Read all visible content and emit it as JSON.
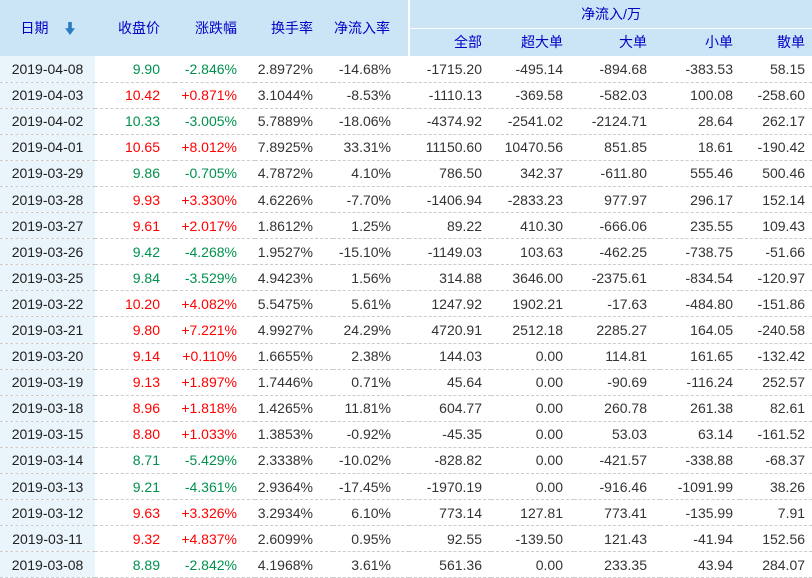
{
  "table": {
    "group_header": "净流入/万",
    "columns": [
      {
        "key": "date",
        "label": "日期"
      },
      {
        "key": "close",
        "label": "收盘价"
      },
      {
        "key": "change",
        "label": "涨跌幅"
      },
      {
        "key": "turnover",
        "label": "换手率"
      },
      {
        "key": "inflow_rate",
        "label": "净流入率"
      },
      {
        "key": "all",
        "label": "全部"
      },
      {
        "key": "super_large",
        "label": "超大单"
      },
      {
        "key": "large",
        "label": "大单"
      },
      {
        "key": "small",
        "label": "小单"
      },
      {
        "key": "retail",
        "label": "散单"
      }
    ],
    "sort": {
      "column": "date",
      "direction": "desc",
      "icon": "down-arrow"
    },
    "colors": {
      "up": "#ff0000",
      "down": "#00914e",
      "header_bg": "#cbe5f6",
      "header_text": "#0202c6",
      "date_column_bg": "#e9f4fb",
      "sort_arrow": "#2b7bc0"
    },
    "rows": [
      {
        "date": "2019-04-08",
        "close": "9.90",
        "change": "-2.846%",
        "turnover": "2.8972%",
        "inflow_rate": "-14.68%",
        "all": "-1715.20",
        "super_large": "-495.14",
        "large": "-894.68",
        "small": "-383.53",
        "retail": "58.15",
        "direction": "down"
      },
      {
        "date": "2019-04-03",
        "close": "10.42",
        "change": "+0.871%",
        "turnover": "3.1044%",
        "inflow_rate": "-8.53%",
        "all": "-1110.13",
        "super_large": "-369.58",
        "large": "-582.03",
        "small": "100.08",
        "retail": "-258.60",
        "direction": "up"
      },
      {
        "date": "2019-04-02",
        "close": "10.33",
        "change": "-3.005%",
        "turnover": "5.7889%",
        "inflow_rate": "-18.06%",
        "all": "-4374.92",
        "super_large": "-2541.02",
        "large": "-2124.71",
        "small": "28.64",
        "retail": "262.17",
        "direction": "down"
      },
      {
        "date": "2019-04-01",
        "close": "10.65",
        "change": "+8.012%",
        "turnover": "7.8925%",
        "inflow_rate": "33.31%",
        "all": "11150.60",
        "super_large": "10470.56",
        "large": "851.85",
        "small": "18.61",
        "retail": "-190.42",
        "direction": "up"
      },
      {
        "date": "2019-03-29",
        "close": "9.86",
        "change": "-0.705%",
        "turnover": "4.7872%",
        "inflow_rate": "4.10%",
        "all": "786.50",
        "super_large": "342.37",
        "large": "-611.80",
        "small": "555.46",
        "retail": "500.46",
        "direction": "down"
      },
      {
        "date": "2019-03-28",
        "close": "9.93",
        "change": "+3.330%",
        "turnover": "4.6226%",
        "inflow_rate": "-7.70%",
        "all": "-1406.94",
        "super_large": "-2833.23",
        "large": "977.97",
        "small": "296.17",
        "retail": "152.14",
        "direction": "up"
      },
      {
        "date": "2019-03-27",
        "close": "9.61",
        "change": "+2.017%",
        "turnover": "1.8612%",
        "inflow_rate": "1.25%",
        "all": "89.22",
        "super_large": "410.30",
        "large": "-666.06",
        "small": "235.55",
        "retail": "109.43",
        "direction": "up"
      },
      {
        "date": "2019-03-26",
        "close": "9.42",
        "change": "-4.268%",
        "turnover": "1.9527%",
        "inflow_rate": "-15.10%",
        "all": "-1149.03",
        "super_large": "103.63",
        "large": "-462.25",
        "small": "-738.75",
        "retail": "-51.66",
        "direction": "down"
      },
      {
        "date": "2019-03-25",
        "close": "9.84",
        "change": "-3.529%",
        "turnover": "4.9423%",
        "inflow_rate": "1.56%",
        "all": "314.88",
        "super_large": "3646.00",
        "large": "-2375.61",
        "small": "-834.54",
        "retail": "-120.97",
        "direction": "down"
      },
      {
        "date": "2019-03-22",
        "close": "10.20",
        "change": "+4.082%",
        "turnover": "5.5475%",
        "inflow_rate": "5.61%",
        "all": "1247.92",
        "super_large": "1902.21",
        "large": "-17.63",
        "small": "-484.80",
        "retail": "-151.86",
        "direction": "up"
      },
      {
        "date": "2019-03-21",
        "close": "9.80",
        "change": "+7.221%",
        "turnover": "4.9927%",
        "inflow_rate": "24.29%",
        "all": "4720.91",
        "super_large": "2512.18",
        "large": "2285.27",
        "small": "164.05",
        "retail": "-240.58",
        "direction": "up"
      },
      {
        "date": "2019-03-20",
        "close": "9.14",
        "change": "+0.110%",
        "turnover": "1.6655%",
        "inflow_rate": "2.38%",
        "all": "144.03",
        "super_large": "0.00",
        "large": "114.81",
        "small": "161.65",
        "retail": "-132.42",
        "direction": "up"
      },
      {
        "date": "2019-03-19",
        "close": "9.13",
        "change": "+1.897%",
        "turnover": "1.7446%",
        "inflow_rate": "0.71%",
        "all": "45.64",
        "super_large": "0.00",
        "large": "-90.69",
        "small": "-116.24",
        "retail": "252.57",
        "direction": "up"
      },
      {
        "date": "2019-03-18",
        "close": "8.96",
        "change": "+1.818%",
        "turnover": "1.4265%",
        "inflow_rate": "11.81%",
        "all": "604.77",
        "super_large": "0.00",
        "large": "260.78",
        "small": "261.38",
        "retail": "82.61",
        "direction": "up"
      },
      {
        "date": "2019-03-15",
        "close": "8.80",
        "change": "+1.033%",
        "turnover": "1.3853%",
        "inflow_rate": "-0.92%",
        "all": "-45.35",
        "super_large": "0.00",
        "large": "53.03",
        "small": "63.14",
        "retail": "-161.52",
        "direction": "up"
      },
      {
        "date": "2019-03-14",
        "close": "8.71",
        "change": "-5.429%",
        "turnover": "2.3338%",
        "inflow_rate": "-10.02%",
        "all": "-828.82",
        "super_large": "0.00",
        "large": "-421.57",
        "small": "-338.88",
        "retail": "-68.37",
        "direction": "down"
      },
      {
        "date": "2019-03-13",
        "close": "9.21",
        "change": "-4.361%",
        "turnover": "2.9364%",
        "inflow_rate": "-17.45%",
        "all": "-1970.19",
        "super_large": "0.00",
        "large": "-916.46",
        "small": "-1091.99",
        "retail": "38.26",
        "direction": "down"
      },
      {
        "date": "2019-03-12",
        "close": "9.63",
        "change": "+3.326%",
        "turnover": "3.2934%",
        "inflow_rate": "6.10%",
        "all": "773.14",
        "super_large": "127.81",
        "large": "773.41",
        "small": "-135.99",
        "retail": "7.91",
        "direction": "up"
      },
      {
        "date": "2019-03-11",
        "close": "9.32",
        "change": "+4.837%",
        "turnover": "2.6099%",
        "inflow_rate": "0.95%",
        "all": "92.55",
        "super_large": "-139.50",
        "large": "121.43",
        "small": "-41.94",
        "retail": "152.56",
        "direction": "up"
      },
      {
        "date": "2019-03-08",
        "close": "8.89",
        "change": "-2.842%",
        "turnover": "4.1968%",
        "inflow_rate": "3.61%",
        "all": "561.36",
        "super_large": "0.00",
        "large": "233.35",
        "small": "43.94",
        "retail": "284.07",
        "direction": "down"
      }
    ]
  }
}
